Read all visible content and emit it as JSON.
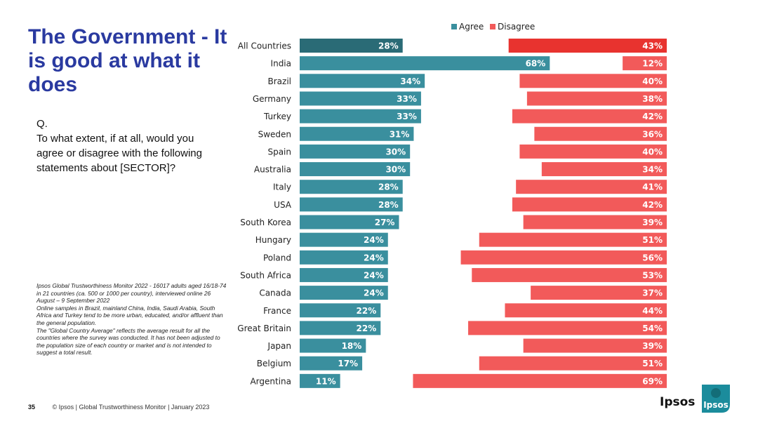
{
  "title": "The Government - It is good at what it does",
  "question": {
    "label": "Q.",
    "text": "To what extent, if at all, would you agree or disagree with the following statements about [SECTOR]?"
  },
  "notes": [
    "Ipsos Global Trustworthiness Monitor 2022 - 16017 adults aged 16/18-74 in 21 countries (ca. 500 or 1000 per country), interviewed online 26 August – 9 September 2022",
    "Online samples in Brazil, mainland China, India, Saudi Arabia, South Africa and Turkey tend to be more urban, educated, and/or affluent than the general population.",
    "The \"Global Country Average\" reflects the average result for all the countries where the survey was conducted. It has not been adjusted to the population size of each country or market and is not intended to suggest a total result."
  ],
  "footer": {
    "page_number": "35",
    "text": "© Ipsos | Global Trustworthiness Monitor | January 2023"
  },
  "brand": {
    "wordmark": "Ipsos",
    "logo_text": "Ipsos"
  },
  "colors": {
    "agree": "#3a8f9e",
    "agree_highlight": "#2a6b76",
    "disagree": "#f25a5a",
    "disagree_highlight": "#e8332f",
    "title": "#2a3aa0",
    "logo": "#1b8c9c"
  },
  "chart_data": {
    "type": "bar",
    "orientation": "horizontal-diverging",
    "legend": [
      "Agree",
      "Disagree"
    ],
    "legend_position": "top",
    "value_suffix": "%",
    "categories": [
      "All Countries",
      "India",
      "Brazil",
      "Germany",
      "Turkey",
      "Sweden",
      "Spain",
      "Australia",
      "Italy",
      "USA",
      "South Korea",
      "Hungary",
      "Poland",
      "South Africa",
      "Canada",
      "France",
      "Great Britain",
      "Japan",
      "Belgium",
      "Argentina"
    ],
    "series": [
      {
        "name": "Agree",
        "values": [
          28,
          68,
          34,
          33,
          33,
          31,
          30,
          30,
          28,
          28,
          27,
          24,
          24,
          24,
          24,
          22,
          22,
          18,
          17,
          11
        ]
      },
      {
        "name": "Disagree",
        "values": [
          43,
          12,
          40,
          38,
          42,
          36,
          40,
          34,
          41,
          42,
          39,
          51,
          56,
          53,
          37,
          44,
          54,
          39,
          51,
          69
        ]
      }
    ],
    "highlight_category": "All Countries"
  }
}
